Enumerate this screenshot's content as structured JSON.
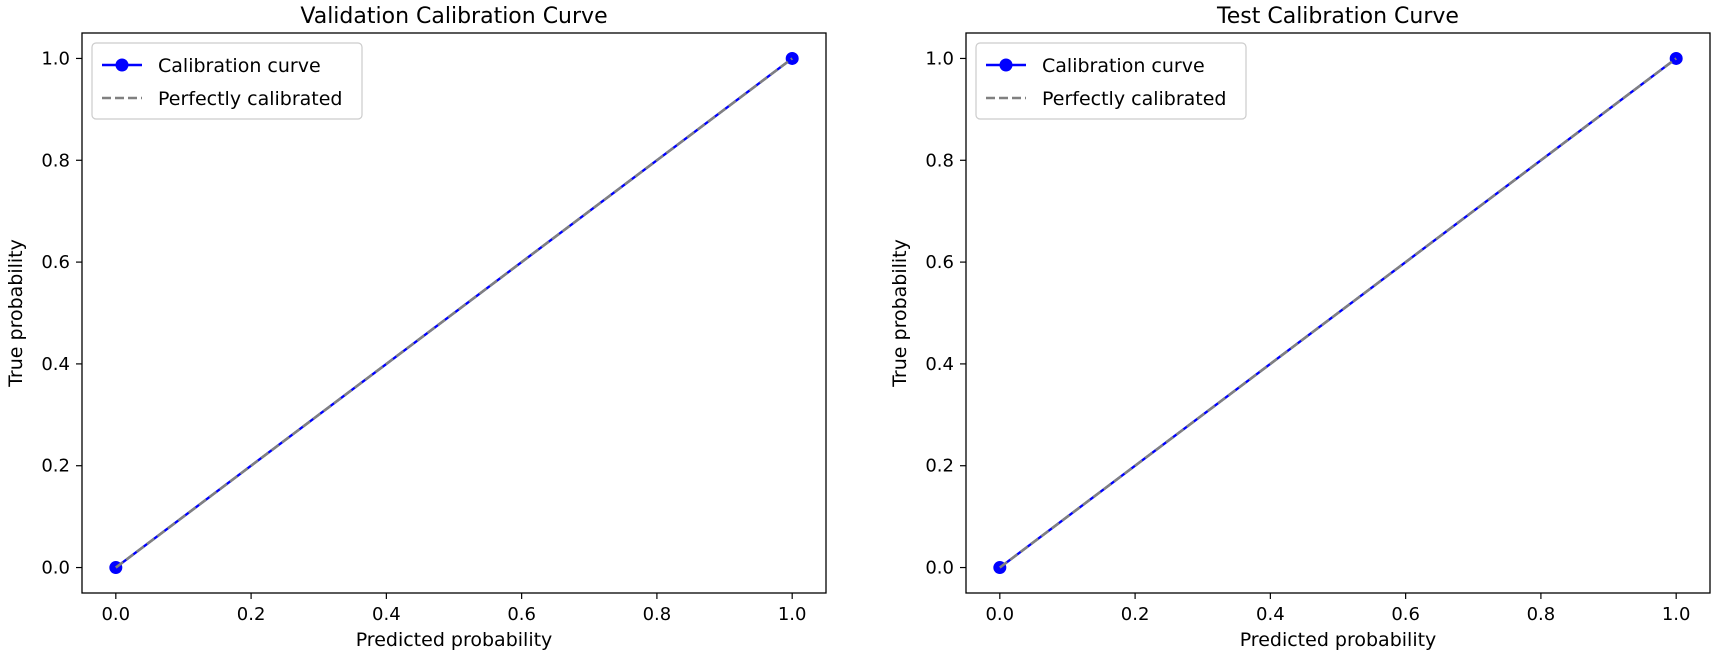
{
  "chart_data": [
    {
      "type": "line",
      "title": "Validation Calibration Curve",
      "xlabel": "Predicted probability",
      "ylabel": "True probability",
      "xlim": [
        -0.05,
        1.05
      ],
      "ylim": [
        -0.05,
        1.05
      ],
      "xticks": [
        "0.0",
        "0.2",
        "0.4",
        "0.6",
        "0.8",
        "1.0"
      ],
      "yticks": [
        "0.0",
        "0.2",
        "0.4",
        "0.6",
        "0.8",
        "1.0"
      ],
      "legend_position": "top-left",
      "series": [
        {
          "name": "Calibration curve",
          "x": [
            0.0,
            1.0
          ],
          "y": [
            0.0,
            1.0
          ],
          "color": "#0000ff",
          "style": "solid-marker"
        },
        {
          "name": "Perfectly calibrated",
          "x": [
            0.0,
            1.0
          ],
          "y": [
            0.0,
            1.0
          ],
          "color": "#808080",
          "style": "dashed"
        }
      ]
    },
    {
      "type": "line",
      "title": "Test Calibration Curve",
      "xlabel": "Predicted probability",
      "ylabel": "True probability",
      "xlim": [
        -0.05,
        1.05
      ],
      "ylim": [
        -0.05,
        1.05
      ],
      "xticks": [
        "0.0",
        "0.2",
        "0.4",
        "0.6",
        "0.8",
        "1.0"
      ],
      "yticks": [
        "0.0",
        "0.2",
        "0.4",
        "0.6",
        "0.8",
        "1.0"
      ],
      "legend_position": "top-left",
      "series": [
        {
          "name": "Calibration curve",
          "x": [
            0.0,
            1.0
          ],
          "y": [
            0.0,
            1.0
          ],
          "color": "#0000ff",
          "style": "solid-marker"
        },
        {
          "name": "Perfectly calibrated",
          "x": [
            0.0,
            1.0
          ],
          "y": [
            0.0,
            1.0
          ],
          "color": "#808080",
          "style": "dashed"
        }
      ]
    }
  ]
}
